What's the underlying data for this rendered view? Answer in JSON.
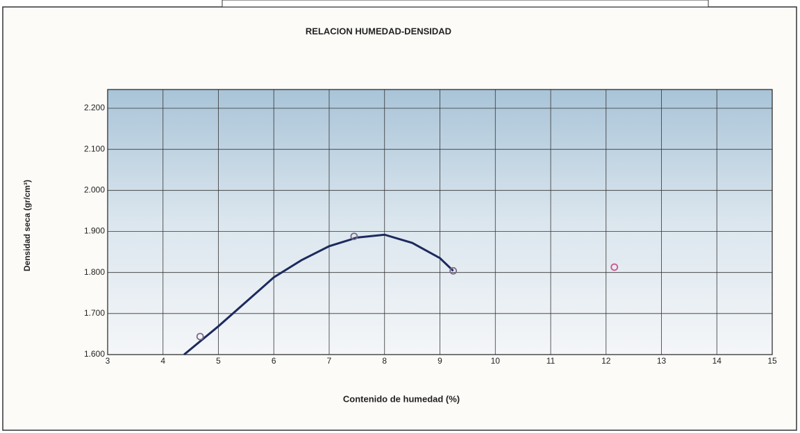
{
  "chart_data": {
    "type": "line",
    "title": "RELACION HUMEDAD-DENSIDAD",
    "x_label": "Contenido de humedad (%)",
    "y_label": "Densidad seca (gr/cm³)",
    "xlim": [
      3,
      15
    ],
    "xticks": [
      3,
      4,
      5,
      6,
      7,
      8,
      9,
      10,
      11,
      12,
      13,
      14,
      15
    ],
    "ylim": [
      1.6,
      2.2
    ],
    "yticks": [
      {
        "value": 1.6,
        "label": "1.600"
      },
      {
        "value": 1.7,
        "label": "1.700"
      },
      {
        "value": 1.8,
        "label": "1.800"
      },
      {
        "value": 1.9,
        "label": "1.900"
      },
      {
        "value": 2.0,
        "label": "2.000"
      },
      {
        "value": 2.1,
        "label": "2.100"
      },
      {
        "value": 2.2,
        "label": "2.200"
      }
    ],
    "grid": true,
    "series": [
      {
        "style": "line",
        "color": "#1c2a5e",
        "x": [
          4.38,
          5,
          6,
          6.5,
          7,
          7.5,
          8,
          8.5,
          9,
          9.24
        ],
        "values": [
          1.6,
          1.669,
          1.788,
          1.83,
          1.864,
          1.885,
          1.892,
          1.872,
          1.835,
          1.804
        ]
      },
      {
        "style": "markers",
        "color": "#7a6a8a",
        "x": [
          4.67,
          7.45,
          9.24
        ],
        "values": [
          1.644,
          1.888,
          1.804
        ]
      },
      {
        "style": "markers",
        "color": "#d0508a",
        "x": [
          12.15
        ],
        "values": [
          1.813
        ]
      }
    ]
  }
}
